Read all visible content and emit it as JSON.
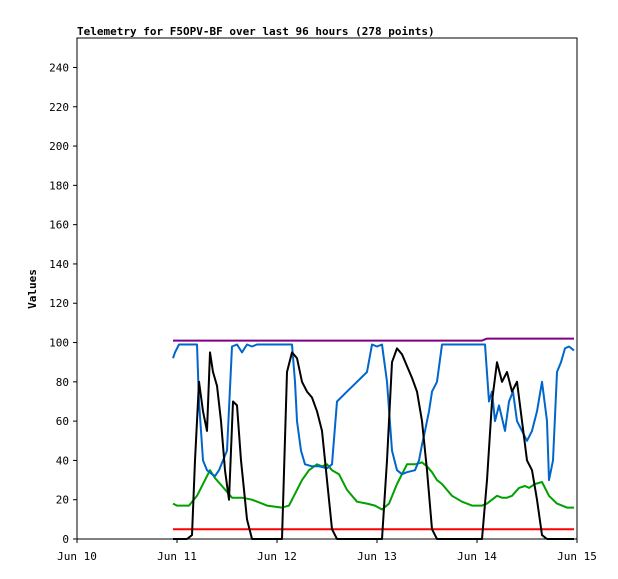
{
  "chart_data": {
    "type": "line",
    "title": "Telemetry for F5OPV-BF over last 96 hours (278 points)",
    "ylabel": "Values",
    "xlabel": "",
    "ylim": [
      0,
      255
    ],
    "xlim": [
      0,
      5
    ],
    "yticks": [
      0,
      20,
      40,
      60,
      80,
      100,
      120,
      140,
      160,
      180,
      200,
      220,
      240
    ],
    "xticks": [
      {
        "x": 0,
        "label": "Jun 10"
      },
      {
        "x": 1,
        "label": "Jun 11"
      },
      {
        "x": 2,
        "label": "Jun 12"
      },
      {
        "x": 3,
        "label": "Jun 13"
      },
      {
        "x": 4,
        "label": "Jun 14"
      },
      {
        "x": 5,
        "label": "Jun 15"
      }
    ],
    "grid": false,
    "legend": "none",
    "series": [
      {
        "color": "#800080",
        "x": [
          0.96,
          2.0,
          3.0,
          3.9,
          4.05,
          4.1,
          4.97
        ],
        "y": [
          101,
          101,
          101,
          101,
          101,
          102,
          102
        ]
      },
      {
        "color": "#ff0000",
        "x": [
          0.96,
          4.97
        ],
        "y": [
          5,
          5
        ]
      },
      {
        "color": "#00a000",
        "x": [
          0.96,
          1.0,
          1.06,
          1.12,
          1.2,
          1.28,
          1.33,
          1.38,
          1.45,
          1.55,
          1.65,
          1.75,
          1.85,
          1.9,
          2.05,
          2.12,
          2.18,
          2.25,
          2.32,
          2.4,
          2.45,
          2.5,
          2.55,
          2.62,
          2.7,
          2.8,
          2.9,
          2.98,
          3.05,
          3.12,
          3.2,
          3.25,
          3.3,
          3.38,
          3.45,
          3.5,
          3.55,
          3.6,
          3.65,
          3.75,
          3.85,
          3.95,
          4.05,
          4.1,
          4.15,
          4.2,
          4.25,
          4.3,
          4.35,
          4.42,
          4.48,
          4.52,
          4.58,
          4.65,
          4.72,
          4.8,
          4.9,
          4.97
        ],
        "y": [
          18,
          17,
          17,
          17,
          22,
          30,
          35,
          31,
          27,
          21,
          21,
          20,
          18,
          17,
          16,
          17,
          23,
          30,
          35,
          38,
          37,
          38,
          35,
          33,
          25,
          19,
          18,
          17,
          15,
          18,
          28,
          33,
          38,
          38,
          39,
          37,
          34,
          30,
          28,
          22,
          19,
          17,
          17,
          18,
          20,
          22,
          21,
          21,
          22,
          26,
          27,
          26,
          28,
          29,
          22,
          18,
          16,
          16
        ]
      },
      {
        "color": "#0066cc",
        "x": [
          0.96,
          0.98,
          1.02,
          1.06,
          1.1,
          1.2,
          1.22,
          1.24,
          1.26,
          1.3,
          1.35,
          1.38,
          1.42,
          1.46,
          1.5,
          1.55,
          1.6,
          1.65,
          1.7,
          1.75,
          1.8,
          1.9,
          2.0,
          2.1,
          2.15,
          2.18,
          2.2,
          2.24,
          2.28,
          2.35,
          2.42,
          2.5,
          2.55,
          2.6,
          2.7,
          2.8,
          2.9,
          2.95,
          3.0,
          3.05,
          3.1,
          3.15,
          3.2,
          3.25,
          3.3,
          3.38,
          3.42,
          3.45,
          3.48,
          3.52,
          3.55,
          3.6,
          3.65,
          3.7,
          3.75,
          3.85,
          3.95,
          4.0,
          4.08,
          4.12,
          4.15,
          4.18,
          4.22,
          4.28,
          4.32,
          4.36,
          4.4,
          4.45,
          4.5,
          4.55,
          4.6,
          4.65,
          4.7,
          4.72,
          4.76,
          4.8,
          4.84,
          4.88,
          4.92,
          4.97
        ],
        "y": [
          92,
          95,
          99,
          99,
          99,
          99,
          70,
          55,
          40,
          35,
          33,
          32,
          35,
          40,
          45,
          98,
          99,
          95,
          99,
          98,
          99,
          99,
          99,
          99,
          99,
          80,
          60,
          45,
          38,
          37,
          37,
          36,
          38,
          70,
          75,
          80,
          85,
          99,
          98,
          99,
          80,
          45,
          35,
          33,
          34,
          35,
          40,
          48,
          55,
          65,
          75,
          80,
          99,
          99,
          99,
          99,
          99,
          99,
          99,
          70,
          75,
          60,
          68,
          55,
          70,
          75,
          60,
          55,
          50,
          55,
          65,
          80,
          60,
          30,
          40,
          85,
          90,
          97,
          98,
          96
        ]
      },
      {
        "color": "#000000",
        "x": [
          0.96,
          1.05,
          1.1,
          1.15,
          1.18,
          1.22,
          1.26,
          1.3,
          1.33,
          1.36,
          1.4,
          1.44,
          1.48,
          1.52,
          1.56,
          1.6,
          1.64,
          1.7,
          1.75,
          1.8,
          1.85,
          2.05,
          2.1,
          2.15,
          2.2,
          2.25,
          2.3,
          2.35,
          2.4,
          2.45,
          2.5,
          2.55,
          2.6,
          2.65,
          2.7,
          2.8,
          3.05,
          3.1,
          3.15,
          3.2,
          3.25,
          3.3,
          3.35,
          3.4,
          3.45,
          3.5,
          3.55,
          3.6,
          3.65,
          3.7,
          3.75,
          3.85,
          4.05,
          4.1,
          4.15,
          4.2,
          4.25,
          4.3,
          4.35,
          4.4,
          4.45,
          4.5,
          4.55,
          4.6,
          4.65,
          4.7,
          4.75,
          4.8,
          4.85,
          4.9,
          4.97
        ],
        "y": [
          0,
          0,
          0,
          2,
          40,
          80,
          65,
          55,
          95,
          85,
          78,
          60,
          35,
          20,
          70,
          68,
          40,
          10,
          0,
          0,
          0,
          0,
          85,
          95,
          92,
          80,
          75,
          72,
          65,
          55,
          30,
          5,
          0,
          0,
          0,
          0,
          0,
          40,
          90,
          97,
          94,
          88,
          82,
          75,
          60,
          35,
          5,
          0,
          0,
          0,
          0,
          0,
          0,
          30,
          70,
          90,
          80,
          85,
          75,
          80,
          60,
          40,
          35,
          20,
          2,
          0,
          0,
          0,
          0,
          0,
          0
        ]
      }
    ]
  }
}
